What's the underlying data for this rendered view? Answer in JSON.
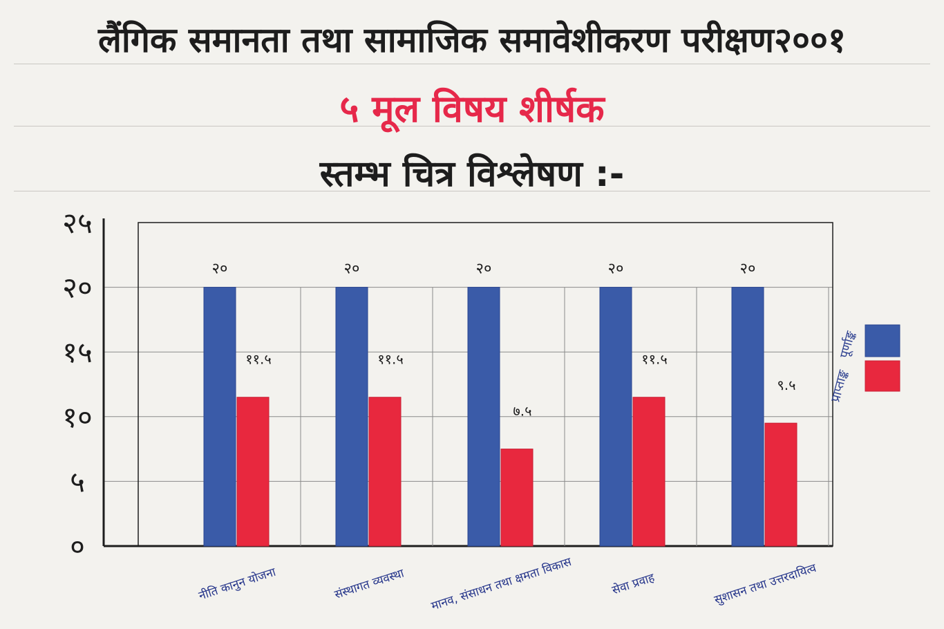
{
  "header": {
    "line1": "लैंगिक समानता तथा सामाजिक समावेशीकरण परीक्षण२००१",
    "line2": "५ मूल विषय शीर्षक",
    "line3": "स्तम्भ चित्र विश्लेषण :-"
  },
  "colors": {
    "full": "#3a5ba8",
    "obtained": "#e8283e",
    "grid": "#8a8a8a",
    "axis": "#1d1d1d",
    "label": "#24348a"
  },
  "chart_data": {
    "type": "bar",
    "categories": [
      "नीति कानुन योजना",
      "संस्थागत व्यवस्था",
      "मानव, संसाधन तथा क्षमता विकास",
      "सेवा प्रवाह",
      "सुशासन तथा उत्तरदायित्व"
    ],
    "series": [
      {
        "name": "पूर्णाङ्क",
        "values": [
          20,
          20,
          20,
          20,
          20
        ]
      },
      {
        "name": "प्राप्ताङ्क",
        "values": [
          11.5,
          11.5,
          7.5,
          11.5,
          9.5
        ]
      }
    ],
    "data_labels": [
      [
        "२०",
        "२०",
        "२०",
        "२०",
        "२०"
      ],
      [
        "११.५",
        "११.५",
        "७.५",
        "११.५",
        "९.५"
      ]
    ],
    "y_ticks": [
      "०",
      "५",
      "१०",
      "१५",
      "२०",
      "२५"
    ],
    "ylim": [
      0,
      25
    ],
    "grid": true,
    "legend_position": "right"
  }
}
